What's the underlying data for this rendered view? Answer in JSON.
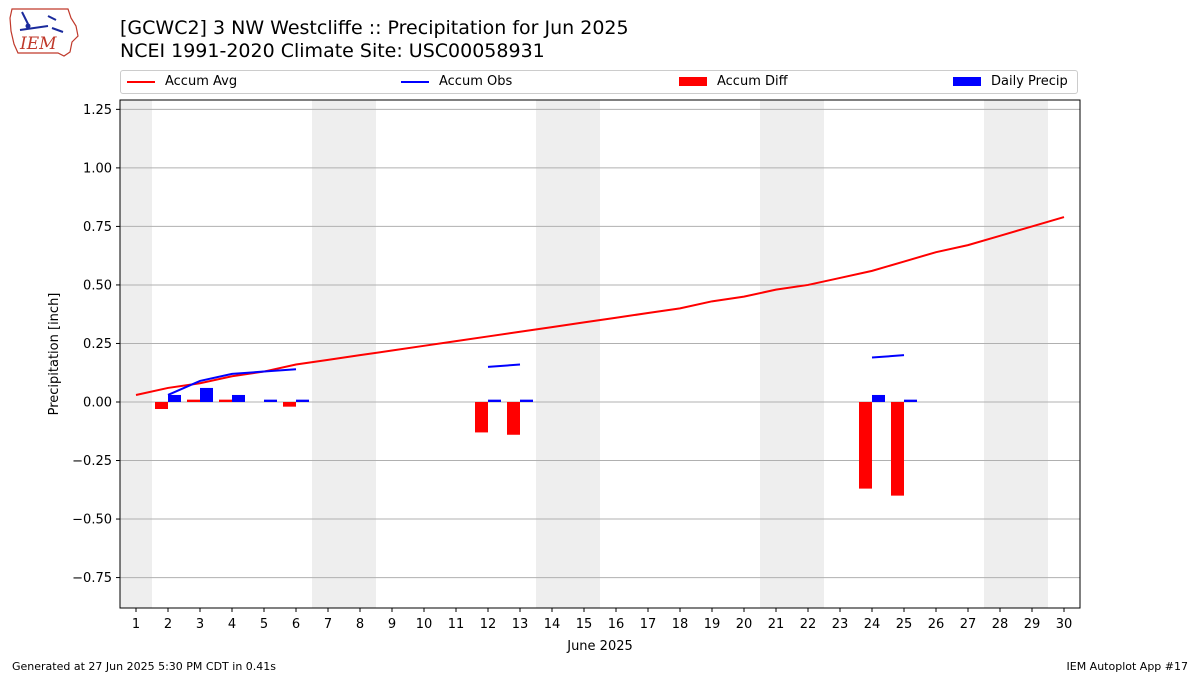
{
  "header": {
    "logo_text": "IEM",
    "title_line1": "[GCWC2] 3 NW Westcliffe :: Precipitation for Jun 2025",
    "title_line2": "NCEI 1991-2020 Climate Site: USC00058931"
  },
  "legend": {
    "items": [
      {
        "label": "Accum Avg",
        "color": "#ff0000",
        "kind": "line"
      },
      {
        "label": "Accum Obs",
        "color": "#0000ff",
        "kind": "line"
      },
      {
        "label": "Accum Diff",
        "color": "#ff0000",
        "kind": "bar"
      },
      {
        "label": "Daily Precip",
        "color": "#0000ff",
        "kind": "bar"
      }
    ]
  },
  "footer": {
    "left": "Generated at 27 Jun 2025 5:30 PM CDT in 0.41s",
    "right": "IEM Autoplot App #17"
  },
  "chart_data": {
    "type": "bar",
    "xlabel": "June 2025",
    "ylabel": "Precipitation [inch]",
    "xlim": [
      0.5,
      30.5
    ],
    "ylim": [
      -0.88,
      1.29
    ],
    "grid": "horizontal",
    "legend_position": "top",
    "x_ticks": [
      1,
      2,
      3,
      4,
      5,
      6,
      7,
      8,
      9,
      10,
      11,
      12,
      13,
      14,
      15,
      16,
      17,
      18,
      19,
      20,
      21,
      22,
      23,
      24,
      25,
      26,
      27,
      28,
      29,
      30
    ],
    "y_ticks": [
      -0.75,
      -0.5,
      -0.25,
      0.0,
      0.25,
      0.5,
      0.75,
      1.0,
      1.25
    ],
    "y_tick_labels": [
      "−0.75",
      "−0.50",
      "−0.25",
      "0.00",
      "0.25",
      "0.50",
      "0.75",
      "1.00",
      "1.25"
    ],
    "weekend_days": [
      1,
      7,
      8,
      14,
      15,
      21,
      22,
      28,
      29
    ],
    "shade_color": "#eeeeee",
    "accum_avg": {
      "name": "Accum Avg",
      "color": "#ff0000",
      "x": [
        1,
        2,
        3,
        4,
        5,
        6,
        7,
        8,
        9,
        10,
        11,
        12,
        13,
        14,
        15,
        16,
        17,
        18,
        19,
        20,
        21,
        22,
        23,
        24,
        25,
        26,
        27,
        28,
        29,
        30
      ],
      "y": [
        0.03,
        0.06,
        0.08,
        0.11,
        0.13,
        0.16,
        0.18,
        0.2,
        0.22,
        0.24,
        0.26,
        0.28,
        0.3,
        0.32,
        0.34,
        0.36,
        0.38,
        0.4,
        0.43,
        0.45,
        0.48,
        0.5,
        0.53,
        0.56,
        0.6,
        0.64,
        0.67,
        0.71,
        0.75,
        0.79
      ]
    },
    "accum_obs": {
      "name": "Accum Obs",
      "color": "#0000ff",
      "segments": [
        {
          "x": [
            2,
            3,
            4,
            5,
            6
          ],
          "y": [
            0.03,
            0.09,
            0.12,
            0.13,
            0.14
          ]
        },
        {
          "x": [
            12,
            13
          ],
          "y": [
            0.15,
            0.16
          ]
        },
        {
          "x": [
            24,
            25
          ],
          "y": [
            0.19,
            0.2
          ]
        }
      ]
    },
    "accum_diff": {
      "name": "Accum Diff",
      "color": "#ff0000",
      "x": [
        2,
        3,
        4,
        6,
        12,
        13,
        24,
        25
      ],
      "values": [
        -0.03,
        0.01,
        0.01,
        -0.02,
        -0.13,
        -0.14,
        -0.37,
        -0.4
      ]
    },
    "daily_precip": {
      "name": "Daily Precip",
      "color": "#0000ff",
      "x": [
        2,
        3,
        4,
        5,
        6,
        12,
        13,
        24,
        25
      ],
      "values": [
        0.03,
        0.06,
        0.03,
        0.01,
        0.01,
        0.01,
        0.01,
        0.03,
        0.01
      ]
    }
  }
}
